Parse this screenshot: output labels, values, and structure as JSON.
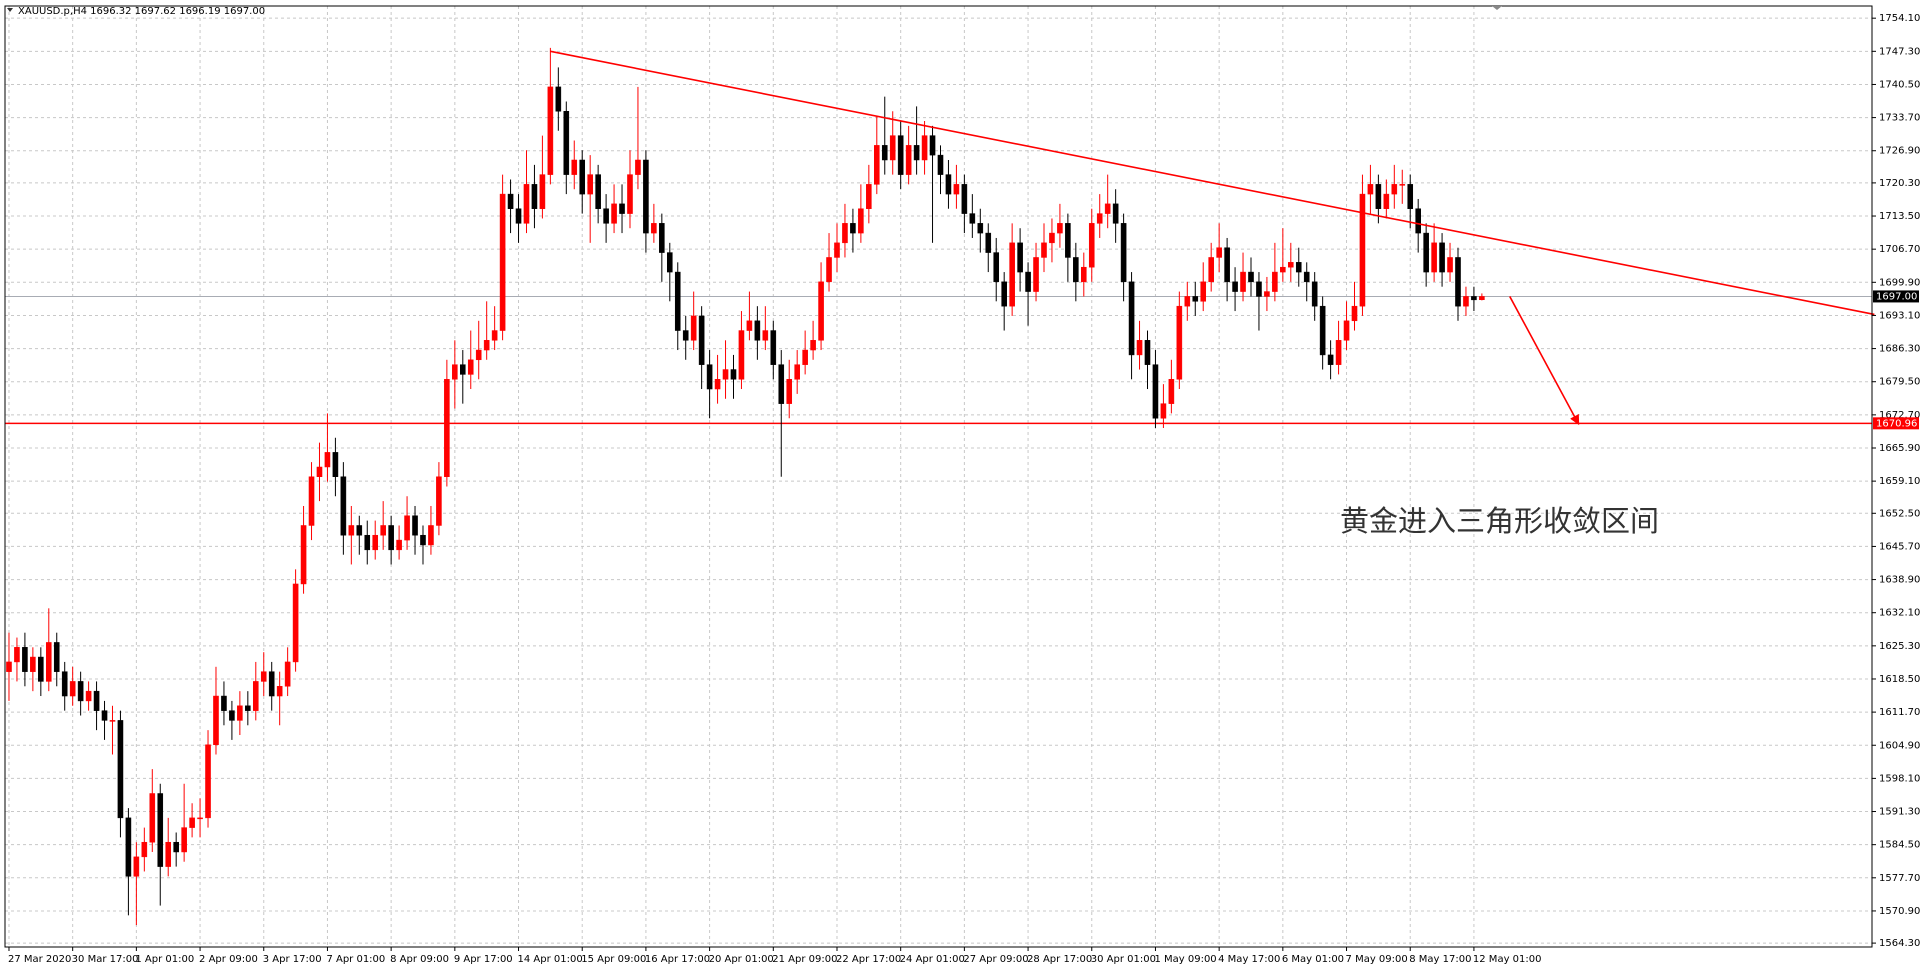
{
  "chart_data": {
    "type": "candlestick",
    "title": "XAUUSD.p,H4  1696.32 1697.62 1696.19 1697.00",
    "annotation": "黄金进入三角形收敛区间",
    "up_color": "#ff0000",
    "down_color": "#000000",
    "grid": true,
    "xlim": [
      -0.5,
      234
    ],
    "ylim": [
      1563.5,
      1756.6
    ],
    "yticks": [
      {
        "value": 1564.3,
        "label": "1564.30"
      },
      {
        "value": 1570.9,
        "label": "1570.90"
      },
      {
        "value": 1577.7,
        "label": "1577.70"
      },
      {
        "value": 1584.5,
        "label": "1584.50"
      },
      {
        "value": 1591.3,
        "label": "1591.30"
      },
      {
        "value": 1598.1,
        "label": "1598.10"
      },
      {
        "value": 1604.9,
        "label": "1604.90"
      },
      {
        "value": 1611.7,
        "label": "1611.70"
      },
      {
        "value": 1618.5,
        "label": "1618.50"
      },
      {
        "value": 1625.3,
        "label": "1625.30"
      },
      {
        "value": 1632.1,
        "label": "1632.10"
      },
      {
        "value": 1638.9,
        "label": "1638.90"
      },
      {
        "value": 1645.7,
        "label": "1645.70"
      },
      {
        "value": 1652.5,
        "label": "1652.50"
      },
      {
        "value": 1659.1,
        "label": "1659.10"
      },
      {
        "value": 1665.9,
        "label": "1665.90"
      },
      {
        "value": 1672.7,
        "label": "1672.70"
      },
      {
        "value": 1679.5,
        "label": "1679.50"
      },
      {
        "value": 1686.3,
        "label": "1686.30"
      },
      {
        "value": 1693.1,
        "label": "1693.10"
      },
      {
        "value": 1699.9,
        "label": "1699.90"
      },
      {
        "value": 1706.7,
        "label": "1706.70"
      },
      {
        "value": 1713.5,
        "label": "1713.50"
      },
      {
        "value": 1720.3,
        "label": "1720.30"
      },
      {
        "value": 1726.9,
        "label": "1726.90"
      },
      {
        "value": 1733.7,
        "label": "1733.70"
      },
      {
        "value": 1740.5,
        "label": "1740.50"
      },
      {
        "value": 1747.3,
        "label": "1747.30"
      },
      {
        "value": 1754.1,
        "label": "1754.10"
      }
    ],
    "categories": [
      "27 Mar 2020",
      null,
      null,
      null,
      null,
      null,
      null,
      null,
      "30 Mar 17:00",
      null,
      null,
      null,
      null,
      null,
      null,
      null,
      "1 Apr 01:00",
      null,
      null,
      null,
      null,
      null,
      null,
      null,
      "2 Apr 09:00",
      null,
      null,
      null,
      null,
      null,
      null,
      null,
      "3 Apr 17:00",
      null,
      null,
      null,
      null,
      null,
      null,
      null,
      "7 Apr 01:00",
      null,
      null,
      null,
      null,
      null,
      null,
      null,
      "8 Apr 09:00",
      null,
      null,
      null,
      null,
      null,
      null,
      null,
      "9 Apr 17:00",
      null,
      null,
      null,
      null,
      null,
      null,
      null,
      "14 Apr 01:00",
      null,
      null,
      null,
      null,
      null,
      null,
      null,
      "15 Apr 09:00",
      null,
      null,
      null,
      null,
      null,
      null,
      null,
      "16 Apr 17:00",
      null,
      null,
      null,
      null,
      null,
      null,
      null,
      "20 Apr 01:00",
      null,
      null,
      null,
      null,
      null,
      null,
      null,
      "21 Apr 09:00",
      null,
      null,
      null,
      null,
      null,
      null,
      null,
      "22 Apr 17:00",
      null,
      null,
      null,
      null,
      null,
      null,
      null,
      "24 Apr 01:00",
      null,
      null,
      null,
      null,
      null,
      null,
      null,
      "27 Apr 09:00",
      null,
      null,
      null,
      null,
      null,
      null,
      null,
      "28 Apr 17:00",
      null,
      null,
      null,
      null,
      null,
      null,
      null,
      "30 Apr 01:00",
      null,
      null,
      null,
      null,
      null,
      null,
      null,
      "1 May 09:00",
      null,
      null,
      null,
      null,
      null,
      null,
      null,
      "4 May 17:00",
      null,
      null,
      null,
      null,
      null,
      null,
      null,
      "6 May 01:00",
      null,
      null,
      null,
      null,
      null,
      null,
      null,
      "7 May 09:00",
      null,
      null,
      null,
      null,
      null,
      null,
      null,
      "8 May 17:00",
      null,
      null,
      null,
      null,
      null,
      null,
      null,
      "12 May 01:00",
      null
    ],
    "candles": [
      [
        1620,
        1628,
        1614,
        1622
      ],
      [
        1622,
        1627,
        1618,
        1625
      ],
      [
        1625,
        1628,
        1617,
        1620
      ],
      [
        1620,
        1625,
        1616,
        1623
      ],
      [
        1623,
        1625,
        1615,
        1618
      ],
      [
        1618,
        1633,
        1616,
        1626
      ],
      [
        1626,
        1628,
        1617,
        1620
      ],
      [
        1620,
        1622,
        1612,
        1615
      ],
      [
        1615,
        1621,
        1613,
        1618
      ],
      [
        1618,
        1620,
        1611,
        1614
      ],
      [
        1614,
        1618,
        1612,
        1616
      ],
      [
        1616,
        1618,
        1608,
        1612
      ],
      [
        1612,
        1614,
        1606,
        1610
      ],
      [
        1610,
        1613,
        1603,
        1610
      ],
      [
        1610,
        1612,
        1586,
        1590
      ],
      [
        1590,
        1592,
        1570,
        1578
      ],
      [
        1578,
        1585,
        1568,
        1582
      ],
      [
        1582,
        1588,
        1579,
        1585
      ],
      [
        1585,
        1600,
        1583,
        1595
      ],
      [
        1595,
        1597,
        1572,
        1580
      ],
      [
        1580,
        1590,
        1578,
        1585
      ],
      [
        1585,
        1587,
        1580,
        1583
      ],
      [
        1583,
        1597,
        1581,
        1588
      ],
      [
        1588,
        1593,
        1586,
        1590
      ],
      [
        1590,
        1594,
        1586,
        1590
      ],
      [
        1590,
        1608,
        1588,
        1605
      ],
      [
        1605,
        1621,
        1603,
        1615
      ],
      [
        1615,
        1618,
        1609,
        1612
      ],
      [
        1612,
        1614,
        1606,
        1610
      ],
      [
        1610,
        1616,
        1607,
        1613
      ],
      [
        1613,
        1616,
        1609,
        1612
      ],
      [
        1612,
        1622,
        1610,
        1618
      ],
      [
        1618,
        1624,
        1615,
        1620
      ],
      [
        1620,
        1622,
        1612,
        1615
      ],
      [
        1615,
        1620,
        1609,
        1617
      ],
      [
        1617,
        1625,
        1615,
        1622
      ],
      [
        1622,
        1641,
        1620,
        1638
      ],
      [
        1638,
        1654,
        1636,
        1650
      ],
      [
        1650,
        1663,
        1647,
        1660
      ],
      [
        1660,
        1667,
        1655,
        1662
      ],
      [
        1662,
        1673,
        1659,
        1665
      ],
      [
        1665,
        1668,
        1656,
        1660
      ],
      [
        1660,
        1663,
        1644,
        1648
      ],
      [
        1648,
        1654,
        1642,
        1650
      ],
      [
        1650,
        1652,
        1644,
        1648
      ],
      [
        1648,
        1651,
        1642,
        1645
      ],
      [
        1645,
        1651,
        1643,
        1648
      ],
      [
        1648,
        1655,
        1645,
        1650
      ],
      [
        1650,
        1652,
        1642,
        1645
      ],
      [
        1645,
        1650,
        1643,
        1647
      ],
      [
        1647,
        1656,
        1645,
        1652
      ],
      [
        1652,
        1654,
        1644,
        1648
      ],
      [
        1648,
        1650,
        1642,
        1646
      ],
      [
        1646,
        1654,
        1644,
        1650
      ],
      [
        1650,
        1663,
        1648,
        1660
      ],
      [
        1660,
        1684,
        1658,
        1680
      ],
      [
        1680,
        1688,
        1674,
        1683
      ],
      [
        1683,
        1686,
        1675,
        1681
      ],
      [
        1681,
        1690,
        1678,
        1684
      ],
      [
        1684,
        1692,
        1680,
        1686
      ],
      [
        1686,
        1696,
        1684,
        1688
      ],
      [
        1688,
        1695,
        1686,
        1690
      ],
      [
        1690,
        1722,
        1688,
        1718
      ],
      [
        1718,
        1721,
        1710,
        1715
      ],
      [
        1715,
        1718,
        1708,
        1712
      ],
      [
        1712,
        1727,
        1710,
        1720
      ],
      [
        1720,
        1724,
        1711,
        1715
      ],
      [
        1715,
        1730,
        1713,
        1722
      ],
      [
        1722,
        1748,
        1720,
        1740
      ],
      [
        1740,
        1744,
        1731,
        1735
      ],
      [
        1735,
        1737,
        1718,
        1722
      ],
      [
        1722,
        1729,
        1719,
        1725
      ],
      [
        1725,
        1727,
        1714,
        1718
      ],
      [
        1718,
        1726,
        1708,
        1722
      ],
      [
        1722,
        1724,
        1712,
        1715
      ],
      [
        1715,
        1718,
        1708,
        1712
      ],
      [
        1712,
        1720,
        1710,
        1716
      ],
      [
        1716,
        1720,
        1710,
        1714
      ],
      [
        1714,
        1727,
        1711,
        1722
      ],
      [
        1722,
        1740,
        1719,
        1725
      ],
      [
        1725,
        1727,
        1706,
        1710
      ],
      [
        1710,
        1716,
        1708,
        1712
      ],
      [
        1712,
        1714,
        1700,
        1706
      ],
      [
        1706,
        1708,
        1696,
        1702
      ],
      [
        1702,
        1704,
        1686,
        1690
      ],
      [
        1690,
        1693,
        1684,
        1688
      ],
      [
        1688,
        1698,
        1686,
        1693
      ],
      [
        1693,
        1695,
        1678,
        1683
      ],
      [
        1683,
        1686,
        1672,
        1678
      ],
      [
        1678,
        1685,
        1675,
        1680
      ],
      [
        1680,
        1688,
        1676,
        1682
      ],
      [
        1682,
        1685,
        1676,
        1680
      ],
      [
        1680,
        1694,
        1678,
        1690
      ],
      [
        1690,
        1698,
        1688,
        1692
      ],
      [
        1692,
        1695,
        1684,
        1688
      ],
      [
        1688,
        1695,
        1686,
        1690
      ],
      [
        1690,
        1692,
        1680,
        1683
      ],
      [
        1683,
        1686,
        1660,
        1675
      ],
      [
        1675,
        1684,
        1672,
        1680
      ],
      [
        1680,
        1686,
        1677,
        1683
      ],
      [
        1683,
        1690,
        1681,
        1686
      ],
      [
        1686,
        1692,
        1684,
        1688
      ],
      [
        1688,
        1704,
        1686,
        1700
      ],
      [
        1700,
        1710,
        1698,
        1705
      ],
      [
        1705,
        1712,
        1702,
        1708
      ],
      [
        1708,
        1716,
        1705,
        1712
      ],
      [
        1712,
        1715,
        1706,
        1710
      ],
      [
        1710,
        1720,
        1708,
        1715
      ],
      [
        1715,
        1724,
        1712,
        1720
      ],
      [
        1720,
        1734,
        1718,
        1728
      ],
      [
        1728,
        1738,
        1722,
        1725
      ],
      [
        1725,
        1735,
        1722,
        1730
      ],
      [
        1730,
        1733,
        1719,
        1722
      ],
      [
        1722,
        1732,
        1720,
        1728
      ],
      [
        1728,
        1736,
        1722,
        1725
      ],
      [
        1725,
        1733,
        1722,
        1730
      ],
      [
        1730,
        1732,
        1708,
        1726
      ],
      [
        1726,
        1728,
        1718,
        1722
      ],
      [
        1722,
        1725,
        1715,
        1718
      ],
      [
        1718,
        1724,
        1715,
        1720
      ],
      [
        1720,
        1722,
        1710,
        1714
      ],
      [
        1714,
        1718,
        1709,
        1712
      ],
      [
        1712,
        1715,
        1706,
        1710
      ],
      [
        1710,
        1712,
        1702,
        1706
      ],
      [
        1706,
        1709,
        1696,
        1700
      ],
      [
        1700,
        1702,
        1690,
        1695
      ],
      [
        1695,
        1712,
        1693,
        1708
      ],
      [
        1708,
        1711,
        1698,
        1702
      ],
      [
        1702,
        1704,
        1691,
        1698
      ],
      [
        1698,
        1708,
        1696,
        1705
      ],
      [
        1705,
        1712,
        1702,
        1708
      ],
      [
        1708,
        1713,
        1704,
        1710
      ],
      [
        1710,
        1716,
        1707,
        1712
      ],
      [
        1712,
        1714,
        1700,
        1705
      ],
      [
        1705,
        1708,
        1696,
        1700
      ],
      [
        1700,
        1706,
        1697,
        1703
      ],
      [
        1703,
        1715,
        1700,
        1712
      ],
      [
        1712,
        1718,
        1709,
        1714
      ],
      [
        1714,
        1722,
        1711,
        1716
      ],
      [
        1716,
        1719,
        1708,
        1712
      ],
      [
        1712,
        1714,
        1696,
        1700
      ],
      [
        1700,
        1702,
        1680,
        1685
      ],
      [
        1685,
        1692,
        1682,
        1688
      ],
      [
        1688,
        1690,
        1678,
        1683
      ],
      [
        1683,
        1686,
        1670,
        1672
      ],
      [
        1672,
        1679,
        1670,
        1675
      ],
      [
        1675,
        1684,
        1673,
        1680
      ],
      [
        1680,
        1698,
        1678,
        1695
      ],
      [
        1695,
        1700,
        1692,
        1697
      ],
      [
        1697,
        1700,
        1693,
        1696
      ],
      [
        1696,
        1704,
        1694,
        1700
      ],
      [
        1700,
        1708,
        1698,
        1705
      ],
      [
        1705,
        1712,
        1702,
        1707
      ],
      [
        1707,
        1709,
        1696,
        1700
      ],
      [
        1700,
        1703,
        1694,
        1698
      ],
      [
        1698,
        1706,
        1696,
        1702
      ],
      [
        1702,
        1705,
        1697,
        1700
      ],
      [
        1700,
        1702,
        1690,
        1697
      ],
      [
        1697,
        1701,
        1694,
        1698
      ],
      [
        1698,
        1708,
        1696,
        1702
      ],
      [
        1702,
        1711,
        1700,
        1703
      ],
      [
        1703,
        1708,
        1700,
        1704
      ],
      [
        1704,
        1707,
        1699,
        1702
      ],
      [
        1702,
        1704,
        1696,
        1700
      ],
      [
        1700,
        1702,
        1692,
        1695
      ],
      [
        1695,
        1697,
        1682,
        1685
      ],
      [
        1685,
        1688,
        1680,
        1683
      ],
      [
        1683,
        1692,
        1681,
        1688
      ],
      [
        1688,
        1696,
        1686,
        1692
      ],
      [
        1692,
        1700,
        1690,
        1695
      ],
      [
        1695,
        1722,
        1693,
        1718
      ],
      [
        1718,
        1724,
        1714,
        1720
      ],
      [
        1720,
        1722,
        1712,
        1715
      ],
      [
        1715,
        1721,
        1713,
        1718
      ],
      [
        1718,
        1724,
        1715,
        1720
      ],
      [
        1720,
        1723,
        1716,
        1720
      ],
      [
        1720,
        1722,
        1711,
        1715
      ],
      [
        1715,
        1717,
        1706,
        1710
      ],
      [
        1710,
        1712,
        1699,
        1702
      ],
      [
        1702,
        1712,
        1700,
        1708
      ],
      [
        1708,
        1710,
        1699,
        1702
      ],
      [
        1702,
        1708,
        1700,
        1705
      ],
      [
        1705,
        1707,
        1692,
        1695
      ],
      [
        1695,
        1699,
        1693,
        1697
      ],
      [
        1697,
        1699,
        1694,
        1696.3
      ],
      [
        1696.32,
        1697.62,
        1696.19,
        1697.0
      ]
    ],
    "hlines": [
      {
        "value": 1697.0,
        "label": "1697.00",
        "color": "#a8acb4"
      },
      {
        "value": 1670.96,
        "label": "1670.96",
        "color": "#ff0000"
      }
    ],
    "trendline": {
      "x": [
        68,
        234.3
      ],
      "y": [
        1747.3,
        1693.3
      ],
      "color": "#ff0000"
    },
    "arrow": {
      "x": [
        188.5,
        197.1
      ],
      "y": [
        1697.0,
        1670.96
      ],
      "color": "#ff0000"
    }
  }
}
